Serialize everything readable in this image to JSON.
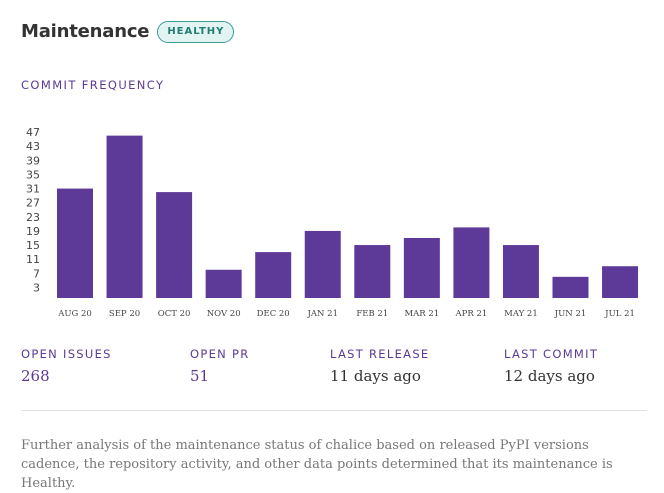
{
  "header": {
    "title": "Maintenance",
    "badge": "HEALTHY"
  },
  "chart_section_label": "COMMIT FREQUENCY",
  "colors": {
    "bar": "#5e3a98",
    "accent": "#5a3a94",
    "badge_border": "#3c9c8f",
    "badge_bg": "#e1f4f1",
    "badge_text": "#237d72"
  },
  "chart_data": {
    "type": "bar",
    "title": "",
    "xlabel": "",
    "ylabel": "",
    "categories": [
      "AUG 20",
      "SEP 20",
      "OCT 20",
      "NOV 20",
      "DEC 20",
      "JAN 21",
      "FEB 21",
      "MAR 21",
      "APR 21",
      "MAY 21",
      "JUN 21",
      "JUL 21"
    ],
    "values": [
      31,
      46,
      30,
      8,
      13,
      19,
      15,
      17,
      20,
      15,
      6,
      9
    ],
    "yticks": [
      3,
      7,
      11,
      15,
      19,
      23,
      27,
      31,
      35,
      39,
      43,
      47
    ],
    "ylim": [
      0,
      48
    ],
    "grid": false,
    "legend": "none"
  },
  "stats": [
    {
      "label": "OPEN ISSUES",
      "value": "268",
      "style": "link"
    },
    {
      "label": "OPEN PR",
      "value": "51",
      "style": "link"
    },
    {
      "label": "LAST RELEASE",
      "value": "11 days ago",
      "style": "plain"
    },
    {
      "label": "LAST COMMIT",
      "value": "12 days ago",
      "style": "plain"
    }
  ],
  "footer": {
    "text": "Further analysis of the maintenance status of chalice based on released PyPI versions cadence, the repository activity, and other data points determined that its maintenance is Healthy."
  }
}
